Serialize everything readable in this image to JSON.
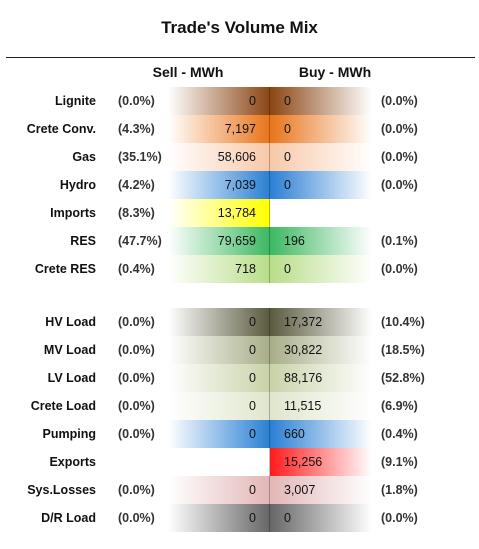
{
  "title": "Trade's Volume Mix",
  "headers": {
    "sell": "Sell - MWh",
    "buy": "Buy - MWh"
  },
  "rows": [
    {
      "label": "Lignite",
      "sell_pct": "(0.0%)",
      "sell": "0",
      "buy": "0",
      "buy_pct": "(0.0%)",
      "color": "#8b4513"
    },
    {
      "label": "Crete Conv.",
      "sell_pct": "(4.3%)",
      "sell": "7,197",
      "buy": "0",
      "buy_pct": "(0.0%)",
      "color": "#e8741a"
    },
    {
      "label": "Gas",
      "sell_pct": "(35.1%)",
      "sell": "58,606",
      "buy": "0",
      "buy_pct": "(0.0%)",
      "color": "#f8c8a8"
    },
    {
      "label": "Hydro",
      "sell_pct": "(4.2%)",
      "sell": "7,039",
      "buy": "0",
      "buy_pct": "(0.0%)",
      "color": "#2a7fd4"
    },
    {
      "label": "Imports",
      "sell_pct": "(8.3%)",
      "sell": "13,784",
      "buy": "",
      "buy_pct": "",
      "color": "#ffff00"
    },
    {
      "label": "RES",
      "sell_pct": "(47.7%)",
      "sell": "79,659",
      "buy": "196",
      "buy_pct": "(0.1%)",
      "color": "#3cb861"
    },
    {
      "label": "Crete RES",
      "sell_pct": "(0.4%)",
      "sell": "718",
      "buy": "0",
      "buy_pct": "(0.0%)",
      "color": "#b8dd88"
    },
    {
      "label": "HV Load",
      "sell_pct": "(0.0%)",
      "sell": "0",
      "buy": "17,372",
      "buy_pct": "(10.4%)",
      "color": "#5a5a3e"
    },
    {
      "label": "MV Load",
      "sell_pct": "(0.0%)",
      "sell": "0",
      "buy": "30,822",
      "buy_pct": "(18.5%)",
      "color": "#a8ad88"
    },
    {
      "label": "LV Load",
      "sell_pct": "(0.0%)",
      "sell": "0",
      "buy": "88,176",
      "buy_pct": "(52.8%)",
      "color": "#c8d2a8"
    },
    {
      "label": "Crete Load",
      "sell_pct": "(0.0%)",
      "sell": "0",
      "buy": "11,515",
      "buy_pct": "(6.9%)",
      "color": "#dfe6cc"
    },
    {
      "label": "Pumping",
      "sell_pct": "(0.0%)",
      "sell": "0",
      "buy": "660",
      "buy_pct": "(0.4%)",
      "color": "#2a7fd4"
    },
    {
      "label": "Exports",
      "sell_pct": "",
      "sell": "",
      "buy": "15,256",
      "buy_pct": "(9.1%)",
      "color": "#ff1a1a"
    },
    {
      "label": "Sys.Losses",
      "sell_pct": "(0.0%)",
      "sell": "0",
      "buy": "3,007",
      "buy_pct": "(1.8%)",
      "color": "#e2b6b6"
    },
    {
      "label": "D/R Load",
      "sell_pct": "(0.0%)",
      "sell": "0",
      "buy": "0",
      "buy_pct": "(0.0%)",
      "color": "#666666"
    }
  ]
}
